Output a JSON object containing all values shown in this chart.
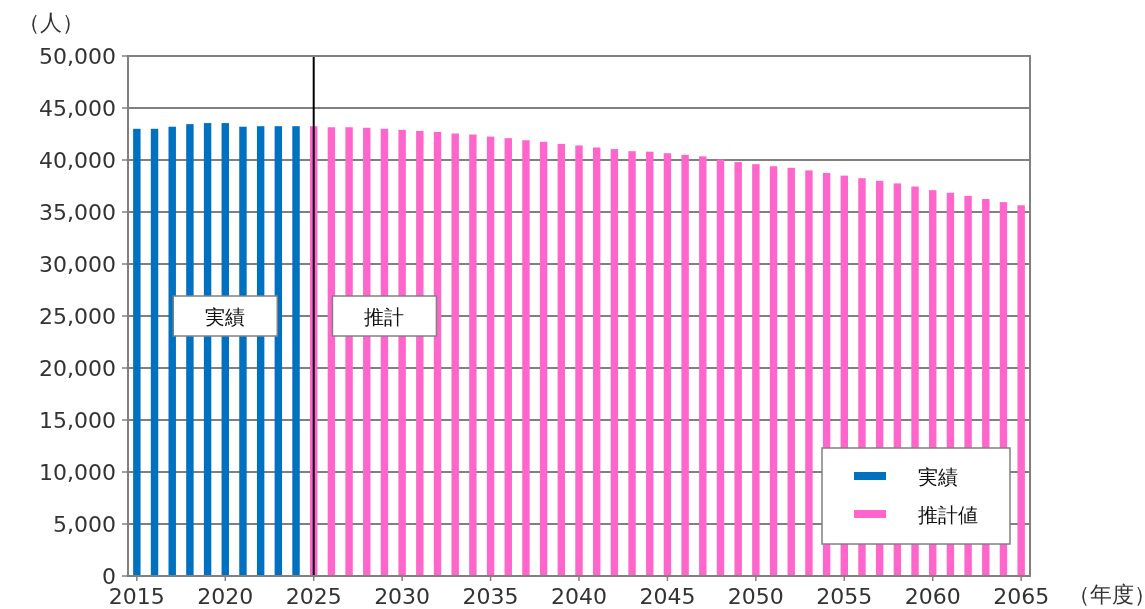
{
  "chart_data": {
    "type": "bar",
    "ylabel": "（人）",
    "xlabel": "（年度）",
    "xlim": [
      2014.5,
      2065.5
    ],
    "xticks": [
      2015,
      2020,
      2025,
      2030,
      2035,
      2040,
      2045,
      2050,
      2055,
      2060,
      2065
    ],
    "ylim": [
      0,
      50000
    ],
    "yticks": [
      {
        "value": 0,
        "label": "0"
      },
      {
        "value": 5000,
        "label": "5,000"
      },
      {
        "value": 10000,
        "label": "10,000"
      },
      {
        "value": 15000,
        "label": "15,000"
      },
      {
        "value": 20000,
        "label": "20,000"
      },
      {
        "value": 25000,
        "label": "25,000"
      },
      {
        "value": 30000,
        "label": "30,000"
      },
      {
        "value": 35000,
        "label": "35,000"
      },
      {
        "value": 40000,
        "label": "40,000"
      },
      {
        "value": 45000,
        "label": "45,000"
      },
      {
        "value": 50000,
        "label": "50,000"
      }
    ],
    "grid": "y",
    "legend": "bottom right",
    "series": [
      {
        "name": "実績",
        "color": "#0070c0",
        "x": [
          2015,
          2016,
          2017,
          2018,
          2019,
          2020,
          2021,
          2022,
          2023,
          2024
        ],
        "values": [
          43000,
          43000,
          43200,
          43450,
          43550,
          43550,
          43200,
          43250,
          43250,
          43250
        ]
      },
      {
        "name": "推計値",
        "color": "#ff66cc",
        "x": [
          2025,
          2026,
          2027,
          2028,
          2029,
          2030,
          2031,
          2032,
          2033,
          2034,
          2035,
          2036,
          2037,
          2038,
          2039,
          2040,
          2041,
          2042,
          2043,
          2044,
          2045,
          2046,
          2047,
          2048,
          2049,
          2050,
          2051,
          2052,
          2053,
          2054,
          2055,
          2056,
          2057,
          2058,
          2059,
          2060,
          2061,
          2062,
          2063,
          2064,
          2065
        ],
        "values": [
          43250,
          43150,
          43150,
          43100,
          43000,
          42900,
          42800,
          42700,
          42550,
          42450,
          42250,
          42100,
          41900,
          41750,
          41550,
          41400,
          41200,
          41050,
          40850,
          40800,
          40650,
          40500,
          40350,
          40050,
          39800,
          39600,
          39400,
          39250,
          39000,
          38750,
          38500,
          38250,
          38000,
          37750,
          37450,
          37100,
          36850,
          36550,
          36250,
          35950,
          35650
        ]
      }
    ],
    "ref_lines": [
      {
        "axis": "x",
        "value": 2025,
        "color": "#000000",
        "line_style": "solid"
      }
    ],
    "annotations": [
      {
        "text": "実績",
        "x": 2020,
        "y": 25000
      },
      {
        "text": "推計",
        "x": 2029,
        "y": 25000
      }
    ]
  }
}
